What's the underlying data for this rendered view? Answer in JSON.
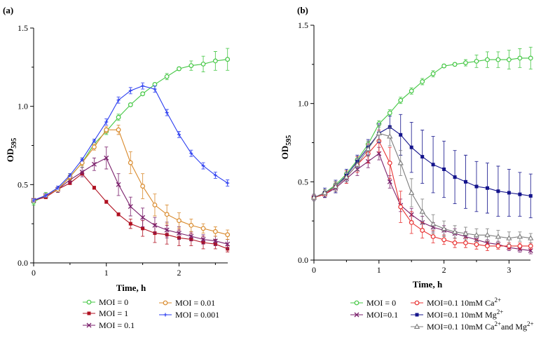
{
  "chart_data": [
    {
      "type": "line",
      "panel_label": "(a)",
      "xlabel": "Time, h",
      "ylabel": "OD",
      "ylabel_sub": "595",
      "xlim": [
        0,
        2.67
      ],
      "ylim": [
        0,
        1.5
      ],
      "xticks": [
        "0",
        "1",
        "2"
      ],
      "yticks": [
        "0.0",
        "0.5",
        "1.0",
        "1.5"
      ],
      "x": [
        0,
        0.167,
        0.333,
        0.5,
        0.667,
        0.833,
        1.0,
        1.167,
        1.333,
        1.5,
        1.667,
        1.833,
        2.0,
        2.167,
        2.333,
        2.5,
        2.667
      ],
      "series": [
        {
          "name": "MOI = 0",
          "color": "#44c744",
          "marker": "circle",
          "values": [
            0.39,
            0.43,
            0.47,
            0.55,
            0.64,
            0.76,
            0.84,
            0.93,
            1.01,
            1.08,
            1.14,
            1.19,
            1.24,
            1.26,
            1.27,
            1.29,
            1.3
          ],
          "errors": [
            0.02,
            0.02,
            0.02,
            0.02,
            0.03,
            0.03,
            0.02,
            0.02,
            0.01,
            0.01,
            0.01,
            0.02,
            0.01,
            0.03,
            0.05,
            0.06,
            0.07
          ]
        },
        {
          "name": "MOI = 1",
          "color": "#b01020",
          "marker": "square",
          "values": [
            0.4,
            0.42,
            0.47,
            0.51,
            0.57,
            0.48,
            0.39,
            0.31,
            0.25,
            0.22,
            0.19,
            0.18,
            0.16,
            0.15,
            0.13,
            0.12,
            0.09
          ],
          "errors": [
            0.01,
            0.01,
            0.01,
            0.01,
            0.01,
            0.01,
            0.01,
            0.01,
            0.03,
            0.05,
            0.06,
            0.06,
            0.05,
            0.04,
            0.04,
            0.03,
            0.02
          ]
        },
        {
          "name": "MOI = 0.1",
          "color": "#7a1f6b",
          "marker": "x",
          "values": [
            0.4,
            0.43,
            0.47,
            0.53,
            0.58,
            0.63,
            0.67,
            0.5,
            0.36,
            0.29,
            0.24,
            0.21,
            0.19,
            0.17,
            0.15,
            0.14,
            0.12
          ],
          "errors": [
            0.01,
            0.01,
            0.02,
            0.02,
            0.03,
            0.04,
            0.07,
            0.07,
            0.06,
            0.06,
            0.05,
            0.05,
            0.04,
            0.03,
            0.03,
            0.03,
            0.03
          ]
        },
        {
          "name": "MOI = 0.01",
          "color": "#d98a2c",
          "marker": "circle",
          "values": [
            0.4,
            0.43,
            0.47,
            0.55,
            0.64,
            0.74,
            0.85,
            0.85,
            0.64,
            0.49,
            0.37,
            0.31,
            0.27,
            0.24,
            0.22,
            0.2,
            0.18
          ],
          "errors": [
            0.01,
            0.01,
            0.01,
            0.02,
            0.02,
            0.02,
            0.02,
            0.03,
            0.07,
            0.08,
            0.07,
            0.06,
            0.05,
            0.04,
            0.03,
            0.03,
            0.03
          ]
        },
        {
          "name": "MOI = 0.001",
          "color": "#2a3cf0",
          "marker": "plus",
          "values": [
            0.4,
            0.43,
            0.48,
            0.56,
            0.66,
            0.78,
            0.9,
            1.04,
            1.1,
            1.13,
            1.11,
            0.96,
            0.82,
            0.7,
            0.62,
            0.56,
            0.51
          ],
          "errors": [
            0.01,
            0.01,
            0.01,
            0.01,
            0.01,
            0.01,
            0.02,
            0.02,
            0.02,
            0.02,
            0.02,
            0.02,
            0.02,
            0.02,
            0.02,
            0.02,
            0.02
          ]
        }
      ]
    },
    {
      "type": "line",
      "panel_label": "(b)",
      "xlabel": "Time, h",
      "ylabel": "OD",
      "ylabel_sub": "595",
      "xlim": [
        0,
        3.33
      ],
      "ylim": [
        0,
        1.5
      ],
      "xticks": [
        "0",
        "1",
        "2",
        "3"
      ],
      "yticks": [
        "0.0",
        "0.5",
        "1.0",
        "1.5"
      ],
      "x": [
        0,
        0.167,
        0.333,
        0.5,
        0.667,
        0.833,
        1.0,
        1.167,
        1.333,
        1.5,
        1.667,
        1.833,
        2.0,
        2.167,
        2.333,
        2.5,
        2.667,
        2.833,
        3.0,
        3.167,
        3.333
      ],
      "series": [
        {
          "name": "MOI = 0",
          "color": "#44c744",
          "marker": "circle",
          "values": [
            0.4,
            0.43,
            0.48,
            0.55,
            0.64,
            0.74,
            0.87,
            0.94,
            1.02,
            1.08,
            1.14,
            1.19,
            1.24,
            1.25,
            1.26,
            1.27,
            1.28,
            1.28,
            1.28,
            1.29,
            1.29
          ],
          "errors": [
            0.01,
            0.02,
            0.02,
            0.02,
            0.02,
            0.02,
            0.02,
            0.02,
            0.02,
            0.02,
            0.02,
            0.02,
            0.01,
            0.01,
            0.02,
            0.04,
            0.05,
            0.05,
            0.06,
            0.06,
            0.07
          ]
        },
        {
          "name": "MOI=0.1",
          "color": "#7a1f6b",
          "marker": "x",
          "values": [
            0.4,
            0.42,
            0.46,
            0.52,
            0.58,
            0.63,
            0.68,
            0.5,
            0.35,
            0.29,
            0.24,
            0.21,
            0.19,
            0.17,
            0.15,
            0.13,
            0.11,
            0.1,
            0.08,
            0.07,
            0.06
          ],
          "errors": [
            0.01,
            0.02,
            0.03,
            0.03,
            0.04,
            0.04,
            0.04,
            0.04,
            0.04,
            0.04,
            0.04,
            0.03,
            0.03,
            0.03,
            0.03,
            0.02,
            0.02,
            0.02,
            0.02,
            0.02,
            0.02
          ]
        },
        {
          "name": "MOI=0.1 10mM Ca",
          "name_sup": "2+",
          "color": "#e83030",
          "marker": "circle",
          "values": [
            0.4,
            0.42,
            0.47,
            0.53,
            0.61,
            0.68,
            0.76,
            0.62,
            0.34,
            0.24,
            0.19,
            0.15,
            0.13,
            0.11,
            0.11,
            0.1,
            0.09,
            0.09,
            0.09,
            0.09,
            0.09
          ],
          "errors": [
            0.02,
            0.02,
            0.03,
            0.04,
            0.05,
            0.06,
            0.07,
            0.1,
            0.1,
            0.07,
            0.05,
            0.04,
            0.03,
            0.03,
            0.03,
            0.03,
            0.03,
            0.02,
            0.02,
            0.02,
            0.02
          ]
        },
        {
          "name": "MOI=0.1 10mM Mg",
          "name_sup": "2+",
          "color": "#14148c",
          "marker": "square",
          "values": [
            0.4,
            0.43,
            0.47,
            0.54,
            0.63,
            0.72,
            0.81,
            0.85,
            0.8,
            0.72,
            0.66,
            0.61,
            0.58,
            0.53,
            0.5,
            0.47,
            0.46,
            0.44,
            0.43,
            0.42,
            0.41
          ],
          "errors": [
            0.02,
            0.03,
            0.04,
            0.04,
            0.04,
            0.05,
            0.06,
            0.07,
            0.13,
            0.16,
            0.17,
            0.18,
            0.18,
            0.17,
            0.17,
            0.16,
            0.16,
            0.16,
            0.15,
            0.14,
            0.14
          ]
        },
        {
          "name": "MOI=0.1 10mM Ca",
          "name_sup": "2+",
          "name_mid": "and Mg",
          "name_sup2": "2+",
          "color": "#7c7c7c",
          "marker": "triangle",
          "values": [
            0.4,
            0.43,
            0.47,
            0.53,
            0.61,
            0.71,
            0.81,
            0.79,
            0.62,
            0.43,
            0.31,
            0.23,
            0.2,
            0.18,
            0.17,
            0.16,
            0.16,
            0.15,
            0.14,
            0.15,
            0.14
          ],
          "errors": [
            0.02,
            0.02,
            0.03,
            0.03,
            0.04,
            0.05,
            0.05,
            0.06,
            0.08,
            0.09,
            0.08,
            0.06,
            0.05,
            0.04,
            0.04,
            0.04,
            0.04,
            0.04,
            0.04,
            0.03,
            0.03
          ]
        }
      ]
    }
  ]
}
